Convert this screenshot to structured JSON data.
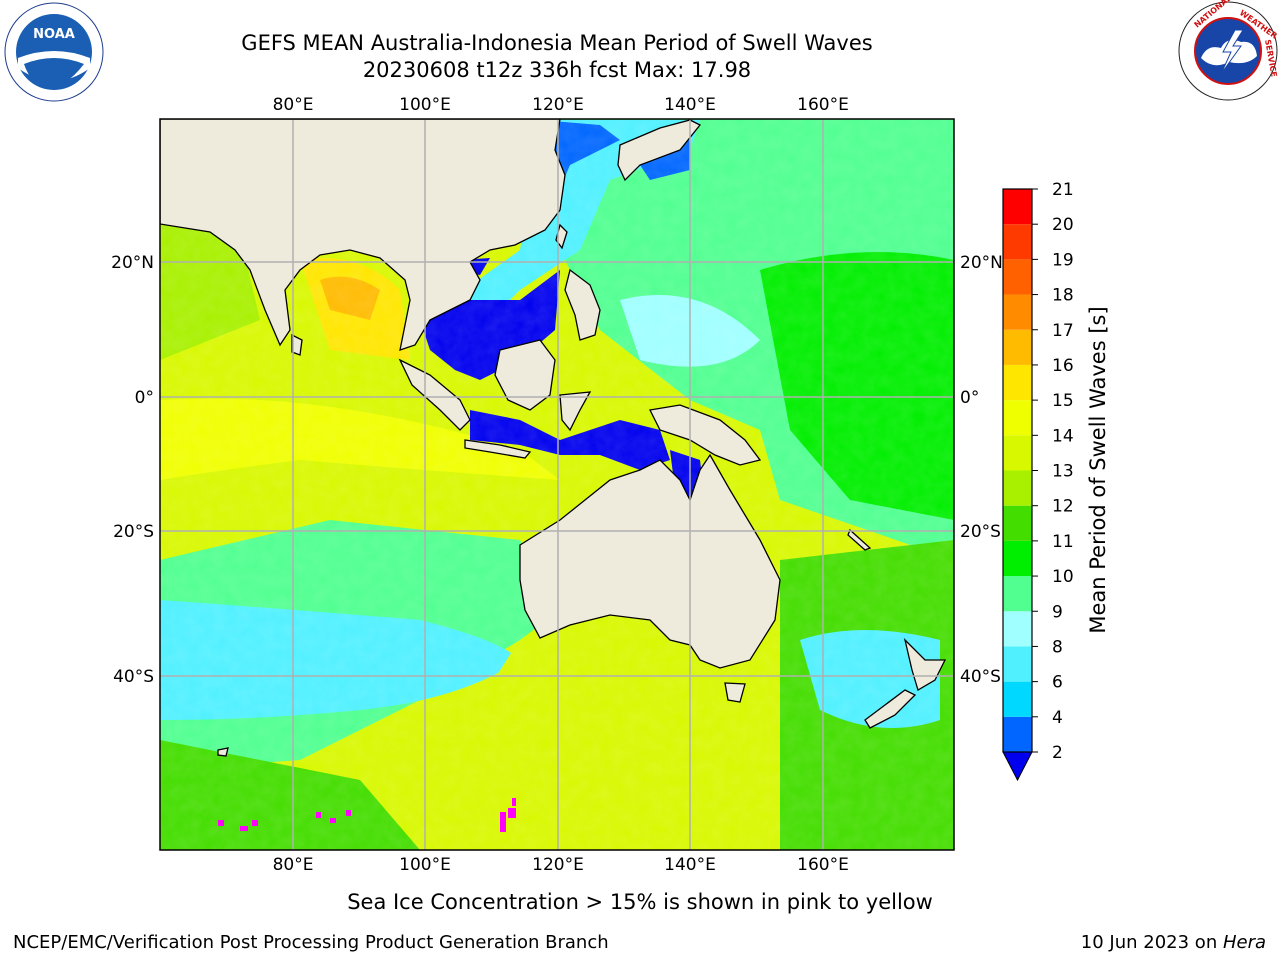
{
  "header": {
    "title_line1": "GEFS MEAN Australia-Indonesia Mean Period of Swell Waves",
    "title_line2": "20230608 t12z 336h fcst   Max: 17.98"
  },
  "logos": {
    "left": "NOAA",
    "right": "NATIONAL WEATHER SERVICE"
  },
  "map": {
    "lon_ticks": [
      "80°E",
      "100°E",
      "120°E",
      "140°E",
      "160°E"
    ],
    "lat_ticks_left": [
      "20°N",
      "0°",
      "20°S",
      "40°S"
    ],
    "lat_ticks_right": [
      "20°N",
      "0°",
      "20°S",
      "40°S"
    ],
    "colors": {
      "land": "#efebdc",
      "grid": "#b0b0b0"
    }
  },
  "colorbar": {
    "label": "Mean Period of Swell Waves [s]",
    "ticks": [
      "2",
      "4",
      "6",
      "8",
      "9",
      "10",
      "11",
      "12",
      "13",
      "14",
      "15",
      "16",
      "17",
      "18",
      "19",
      "20",
      "21"
    ],
    "colors": [
      "#0066ff",
      "#00d8ff",
      "#50f0ff",
      "#a0ffff",
      "#50ff90",
      "#00ee00",
      "#44dd00",
      "#a8f000",
      "#d8f800",
      "#f0ff00",
      "#ffe600",
      "#ffbb00",
      "#ff8c00",
      "#ff6000",
      "#ff3a00",
      "#ff0000"
    ],
    "extend_color": "#0000ee"
  },
  "footer": {
    "note": "Sea Ice Concentration > 15% is shown in pink to yellow",
    "left": "NCEP/EMC/Verification Post Processing Product Generation Branch",
    "right_date": "10 Jun 2023 on ",
    "right_machine": "Hera"
  }
}
